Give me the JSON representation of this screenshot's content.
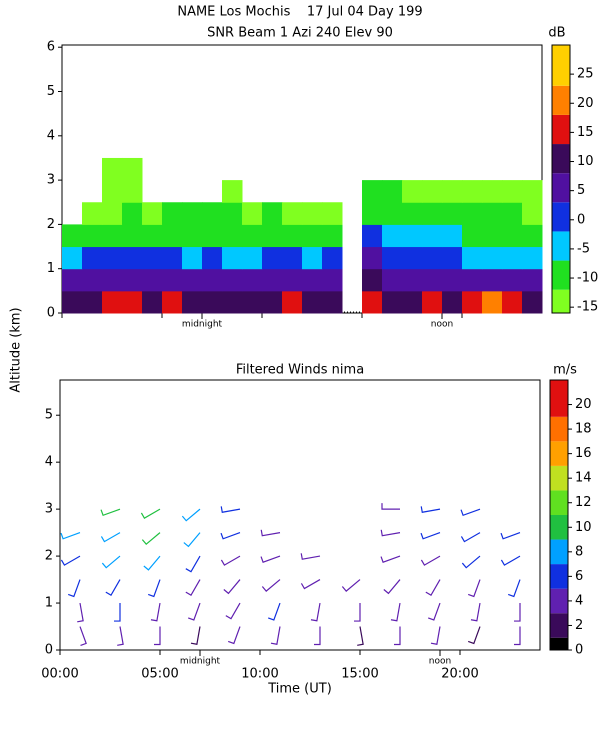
{
  "chart_data": [
    {
      "type": "heatmap",
      "title": "NAME Los Mochis    17 Jul 04 Day 199",
      "subtitle": "SNR Beam 1 Azi 240 Elev 90",
      "y_label": "Altitude (km)",
      "colorbar_label": "dB",
      "xlim": [
        0,
        24
      ],
      "ylim": [
        0,
        6.05
      ],
      "yticks": [
        0,
        1,
        2,
        3,
        4,
        5,
        6
      ],
      "markers": [
        {
          "label": "midnight",
          "x": 7
        },
        {
          "label": "noon",
          "x": 19
        }
      ],
      "times": [
        0.5,
        1.5,
        2.5,
        3.5,
        4.5,
        5.5,
        6.5,
        7.5,
        8.5,
        9.5,
        10.5,
        11.5,
        12.5,
        13.5,
        14.5,
        15.5,
        16.5,
        17.5,
        18.5,
        19.5,
        20.5,
        21.5,
        22.5,
        23.5
      ],
      "altitudes": [
        0.25,
        0.75,
        1.25,
        1.75,
        2.25,
        2.75,
        3.25
      ],
      "z": [
        [
          10,
          12,
          14,
          13,
          12,
          15,
          12,
          11,
          12,
          10,
          12,
          13,
          11,
          12,
          null,
          14,
          12,
          12,
          13,
          12,
          14,
          18,
          16,
          12
        ],
        [
          5,
          4,
          6,
          5,
          4,
          6,
          5,
          3,
          4,
          5,
          6,
          5,
          4,
          5,
          null,
          8,
          6,
          5,
          4,
          5,
          4,
          3,
          4,
          3
        ],
        [
          -3,
          -2,
          -1,
          0,
          -2,
          -1,
          -3,
          -2,
          -4,
          -3,
          -2,
          -1,
          -3,
          -2,
          null,
          4,
          2,
          -1,
          2,
          -2,
          -3,
          -4,
          -5,
          -6
        ],
        [
          -12,
          -11,
          -9,
          -8,
          -10,
          -9,
          -8,
          -9,
          -10,
          -9,
          -10,
          -9,
          -11,
          -10,
          null,
          2,
          -4,
          -6,
          -4,
          -7,
          -8,
          -9,
          -10,
          -10
        ],
        [
          null,
          -14,
          -13,
          -12,
          -13,
          -12,
          -11,
          -12,
          -12,
          -13,
          -12,
          -13,
          -14,
          -13,
          null,
          -8,
          -9,
          -10,
          -10,
          -11,
          -11,
          -12,
          -12,
          -13
        ],
        [
          null,
          null,
          -14,
          -14,
          null,
          null,
          null,
          null,
          -14,
          null,
          null,
          null,
          null,
          null,
          null,
          -12,
          -12,
          -13,
          -13,
          -13,
          -13,
          -14,
          -14,
          -14
        ],
        [
          null,
          null,
          -14,
          -14,
          null,
          null,
          null,
          null,
          null,
          null,
          null,
          null,
          null,
          null,
          null,
          null,
          null,
          null,
          null,
          null,
          null,
          null,
          null,
          null
        ]
      ],
      "clim": [
        -16,
        30
      ],
      "cticks": [
        -15,
        -10,
        -5,
        0,
        5,
        10,
        15,
        20,
        25
      ],
      "bounds": [
        -16,
        -12,
        -7,
        -2,
        3,
        8,
        13,
        18,
        23,
        30
      ],
      "colors": [
        "#80ff20",
        "#20e020",
        "#00c8ff",
        "#1030e0",
        "#5010a0",
        "#3a0a5a",
        "#e01010",
        "#ff8000",
        "#ffd000"
      ]
    },
    {
      "type": "barbs",
      "title": "Filtered Winds nima",
      "x_label": "Time (UT)",
      "colorbar_label": "m/s",
      "xlim": [
        0,
        24
      ],
      "xticks": [
        {
          "value": 0,
          "label": "00:00"
        },
        {
          "value": 5,
          "label": "05:00"
        },
        {
          "value": 10,
          "label": "10:00"
        },
        {
          "value": 15,
          "label": "15:00"
        },
        {
          "value": 20,
          "label": "20:00"
        }
      ],
      "ylim": [
        0,
        5.75
      ],
      "yticks": [
        0,
        1,
        2,
        3,
        4,
        5
      ],
      "markers": [
        {
          "label": "midnight",
          "x": 7
        },
        {
          "label": "noon",
          "x": 19
        }
      ],
      "times": [
        1,
        3,
        5,
        7,
        9,
        11,
        13,
        15,
        17,
        19,
        21,
        23
      ],
      "altitudes": [
        0.5,
        1,
        1.5,
        2,
        2.5,
        3
      ],
      "speed": [
        [
          3,
          4,
          3,
          2,
          3,
          4,
          3,
          2,
          3,
          3,
          2,
          3
        ],
        [
          4,
          5,
          4,
          3,
          4,
          5,
          3,
          3,
          4,
          4,
          3,
          4
        ],
        [
          5,
          6,
          5,
          4,
          3,
          4,
          4,
          3,
          4,
          3,
          4,
          5
        ],
        [
          6,
          7,
          7,
          6,
          4,
          4,
          3,
          null,
          4,
          4,
          5,
          6
        ],
        [
          7,
          8,
          9,
          7,
          5,
          4,
          null,
          null,
          4,
          5,
          6,
          6
        ],
        [
          null,
          9,
          10,
          8,
          5,
          null,
          null,
          null,
          4,
          5,
          6,
          null
        ]
      ],
      "direction": [
        [
          160,
          170,
          180,
          190,
          200,
          190,
          180,
          170,
          180,
          190,
          200,
          180
        ],
        [
          170,
          180,
          190,
          200,
          210,
          200,
          190,
          180,
          190,
          200,
          190,
          180
        ],
        [
          200,
          210,
          200,
          210,
          220,
          230,
          240,
          230,
          220,
          210,
          200,
          200
        ],
        [
          240,
          230,
          220,
          210,
          240,
          250,
          260,
          null,
          250,
          240,
          230,
          240
        ],
        [
          250,
          240,
          230,
          220,
          250,
          260,
          null,
          null,
          260,
          250,
          240,
          250
        ],
        [
          null,
          250,
          240,
          230,
          260,
          null,
          null,
          null,
          270,
          260,
          250,
          null
        ]
      ],
      "clim": [
        0,
        22
      ],
      "cticks": [
        0,
        2,
        4,
        6,
        8,
        10,
        12,
        14,
        16,
        18,
        20
      ],
      "bounds": [
        0,
        1,
        3,
        5,
        7,
        9,
        11,
        13,
        15,
        17,
        19,
        22
      ],
      "colors": [
        "#000000",
        "#3a0a5a",
        "#6020b0",
        "#1030e0",
        "#00a0ff",
        "#20c040",
        "#60e020",
        "#c0e020",
        "#ffa000",
        "#ff7000",
        "#e01010"
      ]
    }
  ]
}
